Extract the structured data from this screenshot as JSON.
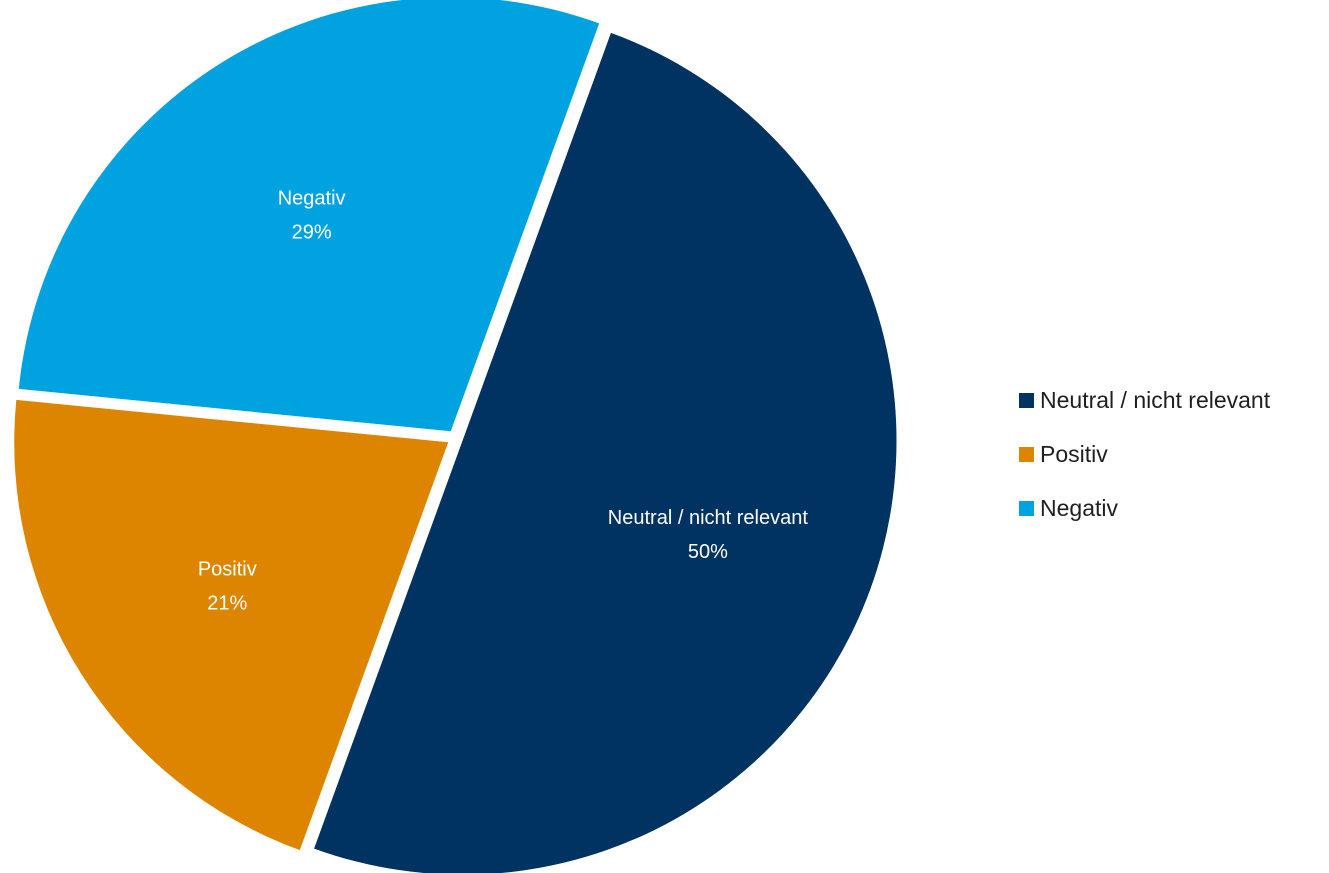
{
  "chart_data": {
    "type": "pie",
    "title": "",
    "legend_position": "right",
    "start_angle_deg": 20,
    "direction": "clockwise",
    "slices": [
      {
        "label": "Neutral / nicht relevant",
        "value": 50,
        "display": "50%",
        "color": "#003262"
      },
      {
        "label": "Positiv",
        "value": 21,
        "display": "21%",
        "color": "#DE8500"
      },
      {
        "label": "Negativ",
        "value": 29,
        "display": "29%",
        "color": "#00A3E0"
      }
    ]
  },
  "legend": {
    "items": [
      {
        "label": "Neutral / nicht relevant",
        "color": "#003262"
      },
      {
        "label": "Positiv",
        "color": "#DE8500"
      },
      {
        "label": "Negativ",
        "color": "#00A3E0"
      }
    ]
  }
}
